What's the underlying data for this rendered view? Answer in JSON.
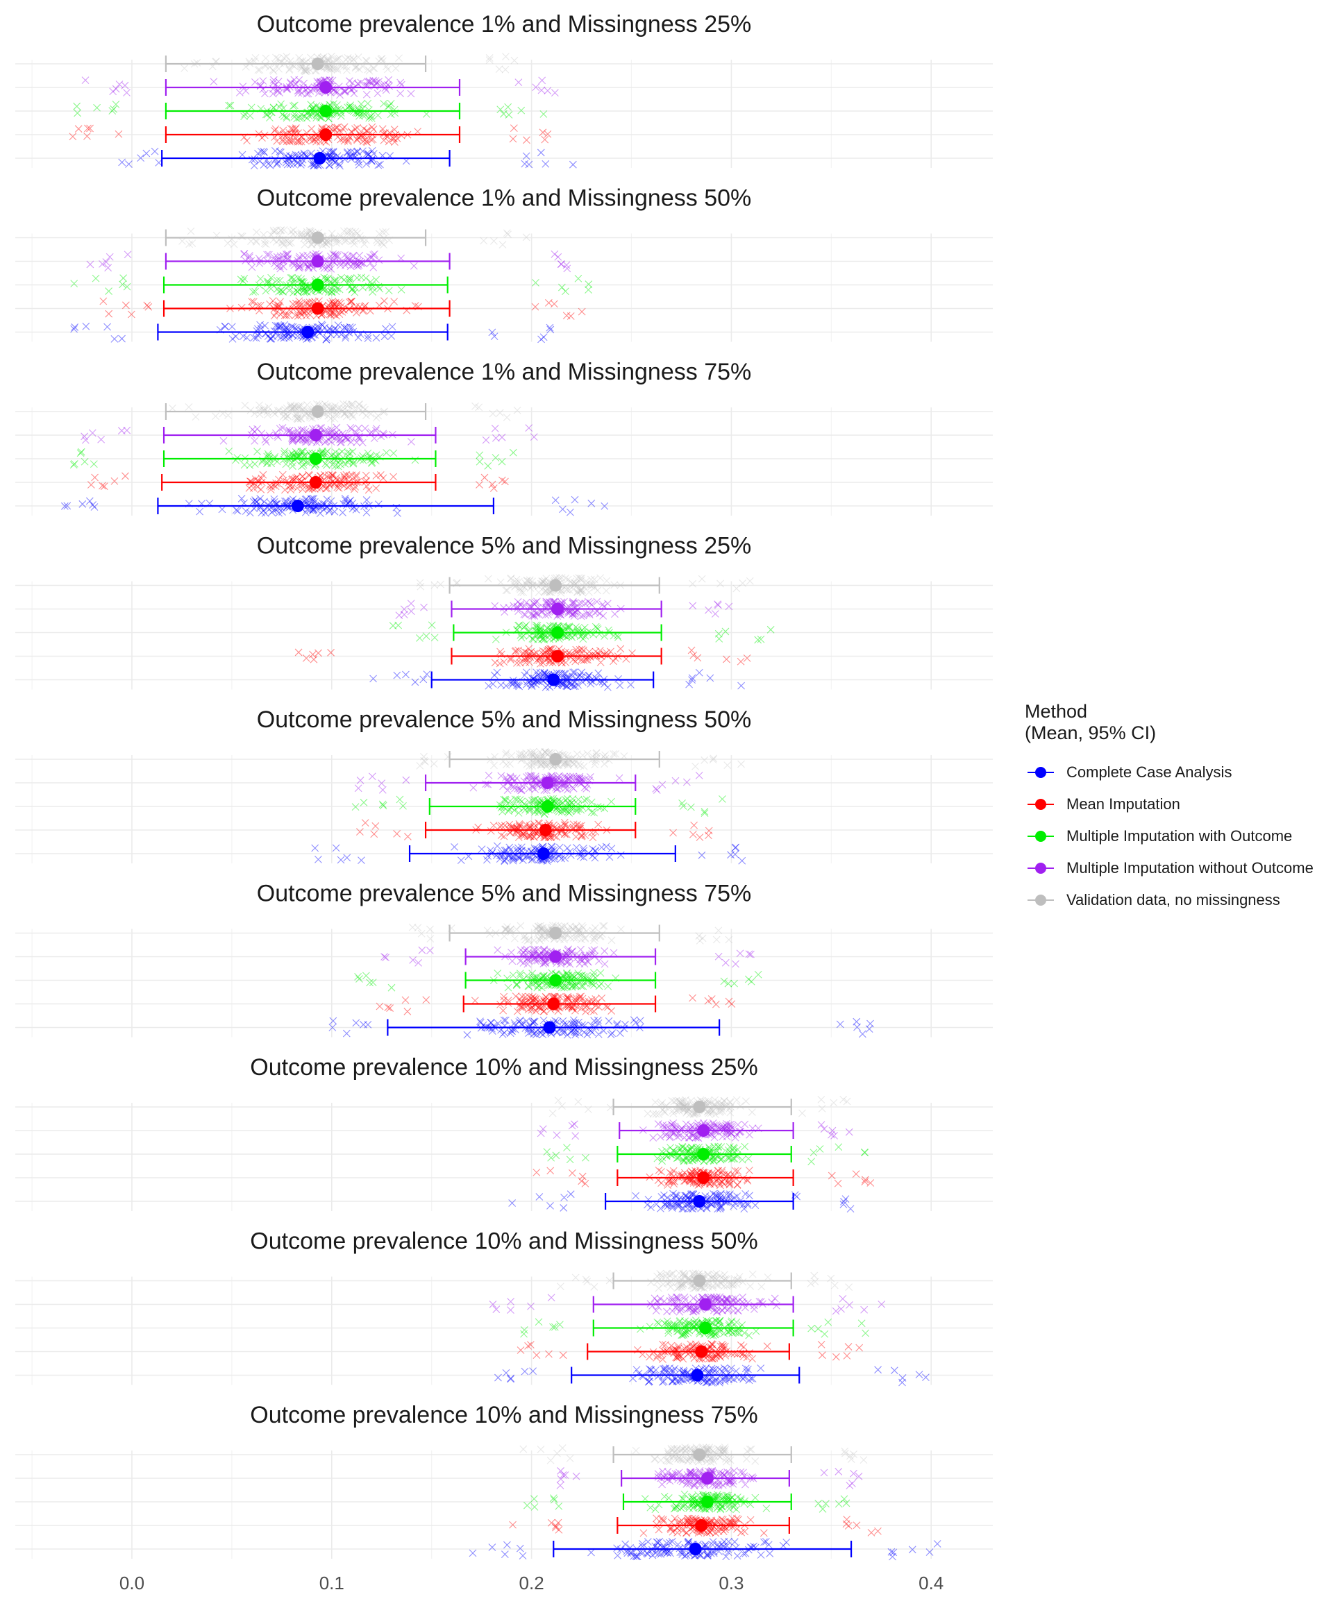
{
  "chart_data": {
    "type": "scatter",
    "xlim": [
      -0.05,
      0.43
    ],
    "x_ticks": [
      0.0,
      0.1,
      0.2,
      0.3,
      0.4
    ],
    "x_tick_labels": [
      "0.0",
      "0.1",
      "0.2",
      "0.3",
      "0.4"
    ],
    "grid": true,
    "legend": {
      "title_line1": "Method",
      "title_line2": "(Mean, 95% CI)",
      "position": "right"
    },
    "methods": [
      {
        "name": "Complete Case Analysis",
        "color": "#0000ff"
      },
      {
        "name": "Mean Imputation",
        "color": "#ff0000"
      },
      {
        "name": "Multiple Imputation with Outcome",
        "color": "#00ee00"
      },
      {
        "name": "Multiple Imputation without Outcome",
        "color": "#a020f0"
      },
      {
        "name": "Validation data, no missingness",
        "color": "#bebebe"
      }
    ],
    "panels": [
      {
        "title": "Outcome prevalence 1% and Missingness 25%",
        "rows": [
          {
            "method": "Validation data, no missingness",
            "mean": 0.093,
            "lower": 0.017,
            "upper": 0.147,
            "spread_min": 0.02,
            "spread_max": 0.2
          },
          {
            "method": "Multiple Imputation without Outcome",
            "mean": 0.097,
            "lower": 0.017,
            "upper": 0.164,
            "spread_min": -0.03,
            "spread_max": 0.22
          },
          {
            "method": "Multiple Imputation with Outcome",
            "mean": 0.097,
            "lower": 0.017,
            "upper": 0.164,
            "spread_min": -0.03,
            "spread_max": 0.21
          },
          {
            "method": "Mean Imputation",
            "mean": 0.097,
            "lower": 0.017,
            "upper": 0.164,
            "spread_min": -0.03,
            "spread_max": 0.22
          },
          {
            "method": "Complete Case Analysis",
            "mean": 0.094,
            "lower": 0.015,
            "upper": 0.159,
            "spread_min": -0.01,
            "spread_max": 0.225
          }
        ]
      },
      {
        "title": "Outcome prevalence 1% and Missingness 50%",
        "rows": [
          {
            "method": "Validation data, no missingness",
            "mean": 0.093,
            "lower": 0.017,
            "upper": 0.147,
            "spread_min": 0.02,
            "spread_max": 0.2
          },
          {
            "method": "Multiple Imputation without Outcome",
            "mean": 0.093,
            "lower": 0.017,
            "upper": 0.159,
            "spread_min": -0.03,
            "spread_max": 0.22
          },
          {
            "method": "Multiple Imputation with Outcome",
            "mean": 0.093,
            "lower": 0.016,
            "upper": 0.158,
            "spread_min": -0.03,
            "spread_max": 0.23
          },
          {
            "method": "Mean Imputation",
            "mean": 0.093,
            "lower": 0.016,
            "upper": 0.159,
            "spread_min": -0.02,
            "spread_max": 0.23
          },
          {
            "method": "Complete Case Analysis",
            "mean": 0.088,
            "lower": 0.013,
            "upper": 0.158,
            "spread_min": -0.03,
            "spread_max": 0.21
          }
        ]
      },
      {
        "title": "Outcome prevalence 1% and Missingness 75%",
        "rows": [
          {
            "method": "Validation data, no missingness",
            "mean": 0.093,
            "lower": 0.017,
            "upper": 0.147,
            "spread_min": 0.02,
            "spread_max": 0.2
          },
          {
            "method": "Multiple Imputation without Outcome",
            "mean": 0.092,
            "lower": 0.016,
            "upper": 0.152,
            "spread_min": -0.03,
            "spread_max": 0.205
          },
          {
            "method": "Multiple Imputation with Outcome",
            "mean": 0.092,
            "lower": 0.016,
            "upper": 0.152,
            "spread_min": -0.03,
            "spread_max": 0.2
          },
          {
            "method": "Mean Imputation",
            "mean": 0.092,
            "lower": 0.015,
            "upper": 0.152,
            "spread_min": -0.03,
            "spread_max": 0.19
          },
          {
            "method": "Complete Case Analysis",
            "mean": 0.083,
            "lower": 0.013,
            "upper": 0.181,
            "spread_min": -0.04,
            "spread_max": 0.24
          }
        ]
      },
      {
        "title": "Outcome prevalence 5% and Missingness 25%",
        "rows": [
          {
            "method": "Validation data, no missingness",
            "mean": 0.212,
            "lower": 0.159,
            "upper": 0.264,
            "spread_min": 0.14,
            "spread_max": 0.31
          },
          {
            "method": "Multiple Imputation without Outcome",
            "mean": 0.213,
            "lower": 0.16,
            "upper": 0.265,
            "spread_min": 0.13,
            "spread_max": 0.3
          },
          {
            "method": "Multiple Imputation with Outcome",
            "mean": 0.213,
            "lower": 0.161,
            "upper": 0.265,
            "spread_min": 0.13,
            "spread_max": 0.32
          },
          {
            "method": "Mean Imputation",
            "mean": 0.213,
            "lower": 0.16,
            "upper": 0.265,
            "spread_min": 0.08,
            "spread_max": 0.31
          },
          {
            "method": "Complete Case Analysis",
            "mean": 0.211,
            "lower": 0.15,
            "upper": 0.261,
            "spread_min": 0.12,
            "spread_max": 0.305
          }
        ]
      },
      {
        "title": "Outcome prevalence 5% and Missingness 50%",
        "rows": [
          {
            "method": "Validation data, no missingness",
            "mean": 0.212,
            "lower": 0.159,
            "upper": 0.264,
            "spread_min": 0.14,
            "spread_max": 0.31
          },
          {
            "method": "Multiple Imputation without Outcome",
            "mean": 0.208,
            "lower": 0.147,
            "upper": 0.252,
            "spread_min": 0.11,
            "spread_max": 0.29
          },
          {
            "method": "Multiple Imputation with Outcome",
            "mean": 0.208,
            "lower": 0.149,
            "upper": 0.252,
            "spread_min": 0.11,
            "spread_max": 0.3
          },
          {
            "method": "Mean Imputation",
            "mean": 0.207,
            "lower": 0.147,
            "upper": 0.252,
            "spread_min": 0.11,
            "spread_max": 0.3
          },
          {
            "method": "Complete Case Analysis",
            "mean": 0.206,
            "lower": 0.139,
            "upper": 0.272,
            "spread_min": 0.09,
            "spread_max": 0.31
          }
        ]
      },
      {
        "title": "Outcome prevalence 5% and Missingness 75%",
        "rows": [
          {
            "method": "Validation data, no missingness",
            "mean": 0.212,
            "lower": 0.159,
            "upper": 0.264,
            "spread_min": 0.14,
            "spread_max": 0.31
          },
          {
            "method": "Multiple Imputation without Outcome",
            "mean": 0.212,
            "lower": 0.167,
            "upper": 0.262,
            "spread_min": 0.12,
            "spread_max": 0.315
          },
          {
            "method": "Multiple Imputation with Outcome",
            "mean": 0.212,
            "lower": 0.167,
            "upper": 0.262,
            "spread_min": 0.1,
            "spread_max": 0.32
          },
          {
            "method": "Mean Imputation",
            "mean": 0.211,
            "lower": 0.166,
            "upper": 0.262,
            "spread_min": 0.12,
            "spread_max": 0.31
          },
          {
            "method": "Complete Case Analysis",
            "mean": 0.209,
            "lower": 0.128,
            "upper": 0.294,
            "spread_min": 0.1,
            "spread_max": 0.37
          }
        ]
      },
      {
        "title": "Outcome prevalence 10% and Missingness 25%",
        "rows": [
          {
            "method": "Validation data, no missingness",
            "mean": 0.284,
            "lower": 0.241,
            "upper": 0.33,
            "spread_min": 0.21,
            "spread_max": 0.365
          },
          {
            "method": "Multiple Imputation without Outcome",
            "mean": 0.286,
            "lower": 0.244,
            "upper": 0.331,
            "spread_min": 0.2,
            "spread_max": 0.37
          },
          {
            "method": "Multiple Imputation with Outcome",
            "mean": 0.286,
            "lower": 0.243,
            "upper": 0.33,
            "spread_min": 0.2,
            "spread_max": 0.37
          },
          {
            "method": "Mean Imputation",
            "mean": 0.286,
            "lower": 0.243,
            "upper": 0.331,
            "spread_min": 0.2,
            "spread_max": 0.375
          },
          {
            "method": "Complete Case Analysis",
            "mean": 0.284,
            "lower": 0.237,
            "upper": 0.331,
            "spread_min": 0.19,
            "spread_max": 0.36
          }
        ]
      },
      {
        "title": "Outcome prevalence 10% and Missingness 50%",
        "rows": [
          {
            "method": "Validation data, no missingness",
            "mean": 0.284,
            "lower": 0.241,
            "upper": 0.33,
            "spread_min": 0.21,
            "spread_max": 0.365
          },
          {
            "method": "Multiple Imputation without Outcome",
            "mean": 0.287,
            "lower": 0.231,
            "upper": 0.331,
            "spread_min": 0.18,
            "spread_max": 0.38
          },
          {
            "method": "Multiple Imputation with Outcome",
            "mean": 0.287,
            "lower": 0.231,
            "upper": 0.331,
            "spread_min": 0.19,
            "spread_max": 0.37
          },
          {
            "method": "Mean Imputation",
            "mean": 0.285,
            "lower": 0.228,
            "upper": 0.329,
            "spread_min": 0.19,
            "spread_max": 0.37
          },
          {
            "method": "Complete Case Analysis",
            "mean": 0.283,
            "lower": 0.22,
            "upper": 0.334,
            "spread_min": 0.18,
            "spread_max": 0.4
          }
        ]
      },
      {
        "title": "Outcome prevalence 10% and Missingness 75%",
        "rows": [
          {
            "method": "Validation data, no missingness",
            "mean": 0.284,
            "lower": 0.241,
            "upper": 0.33,
            "spread_min": 0.19,
            "spread_max": 0.37
          },
          {
            "method": "Multiple Imputation without Outcome",
            "mean": 0.288,
            "lower": 0.245,
            "upper": 0.329,
            "spread_min": 0.2,
            "spread_max": 0.37
          },
          {
            "method": "Multiple Imputation with Outcome",
            "mean": 0.288,
            "lower": 0.246,
            "upper": 0.33,
            "spread_min": 0.19,
            "spread_max": 0.37
          },
          {
            "method": "Mean Imputation",
            "mean": 0.285,
            "lower": 0.243,
            "upper": 0.329,
            "spread_min": 0.19,
            "spread_max": 0.38
          },
          {
            "method": "Complete Case Analysis",
            "mean": 0.282,
            "lower": 0.211,
            "upper": 0.36,
            "spread_min": 0.17,
            "spread_max": 0.41
          }
        ]
      }
    ]
  }
}
